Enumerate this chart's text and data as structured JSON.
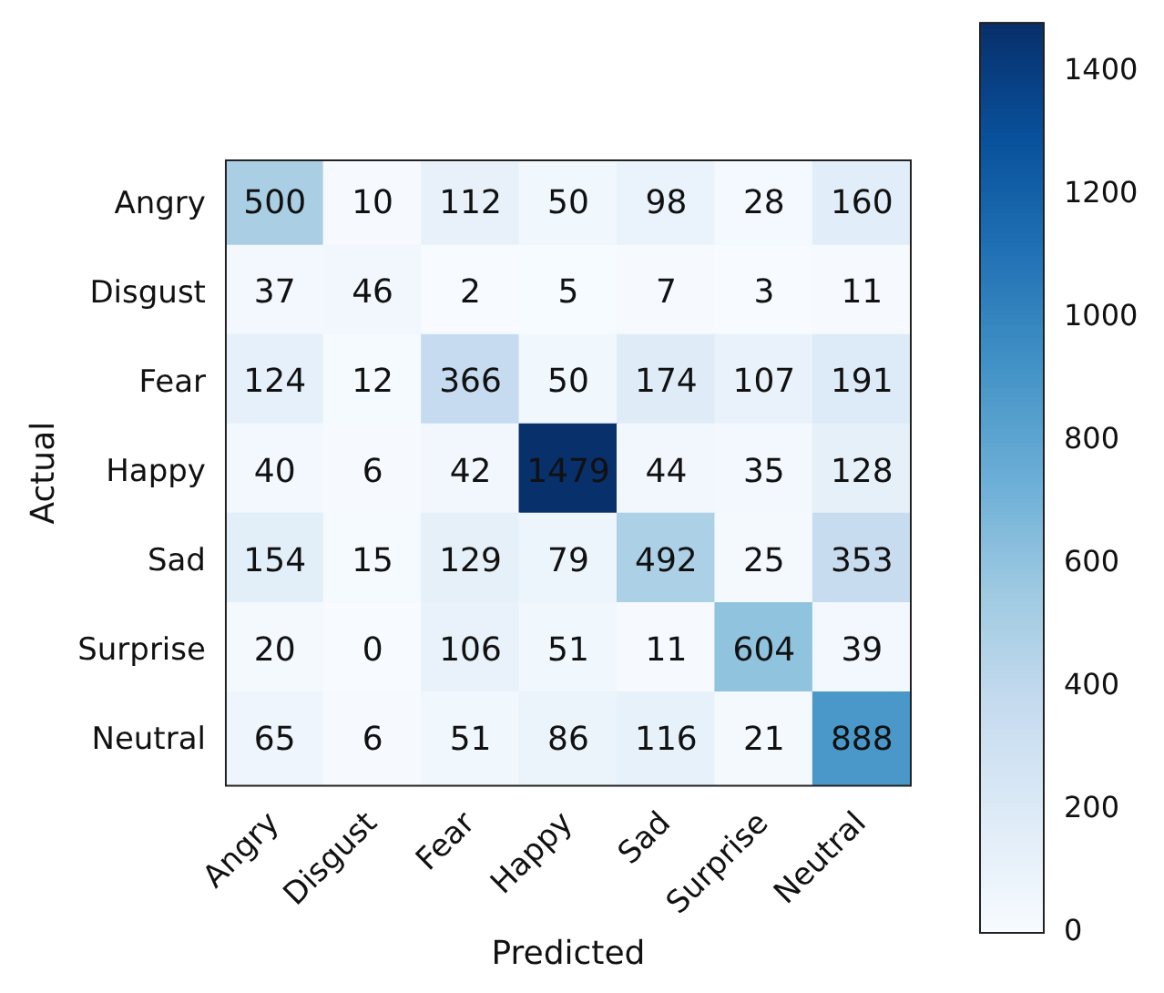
{
  "chart_data": {
    "type": "heatmap",
    "xlabel": "Predicted",
    "ylabel": "Actual",
    "categories": [
      "Angry",
      "Disgust",
      "Fear",
      "Happy",
      "Sad",
      "Surprise",
      "Neutral"
    ],
    "y_categories": [
      "Angry",
      "Disgust",
      "Fear",
      "Happy",
      "Sad",
      "Surprise",
      "Neutral"
    ],
    "cells": [
      [
        500,
        10,
        112,
        50,
        98,
        28,
        160
      ],
      [
        37,
        46,
        2,
        5,
        7,
        3,
        11
      ],
      [
        124,
        12,
        366,
        50,
        174,
        107,
        191
      ],
      [
        40,
        6,
        42,
        1479,
        44,
        35,
        128
      ],
      [
        154,
        15,
        129,
        79,
        492,
        25,
        353
      ],
      [
        20,
        0,
        106,
        51,
        11,
        604,
        39
      ],
      [
        65,
        6,
        51,
        86,
        116,
        21,
        888
      ]
    ],
    "clim": [
      0,
      1479
    ],
    "cticks": [
      0,
      200,
      400,
      600,
      800,
      1000,
      1200,
      1400
    ],
    "data_labels": true
  }
}
